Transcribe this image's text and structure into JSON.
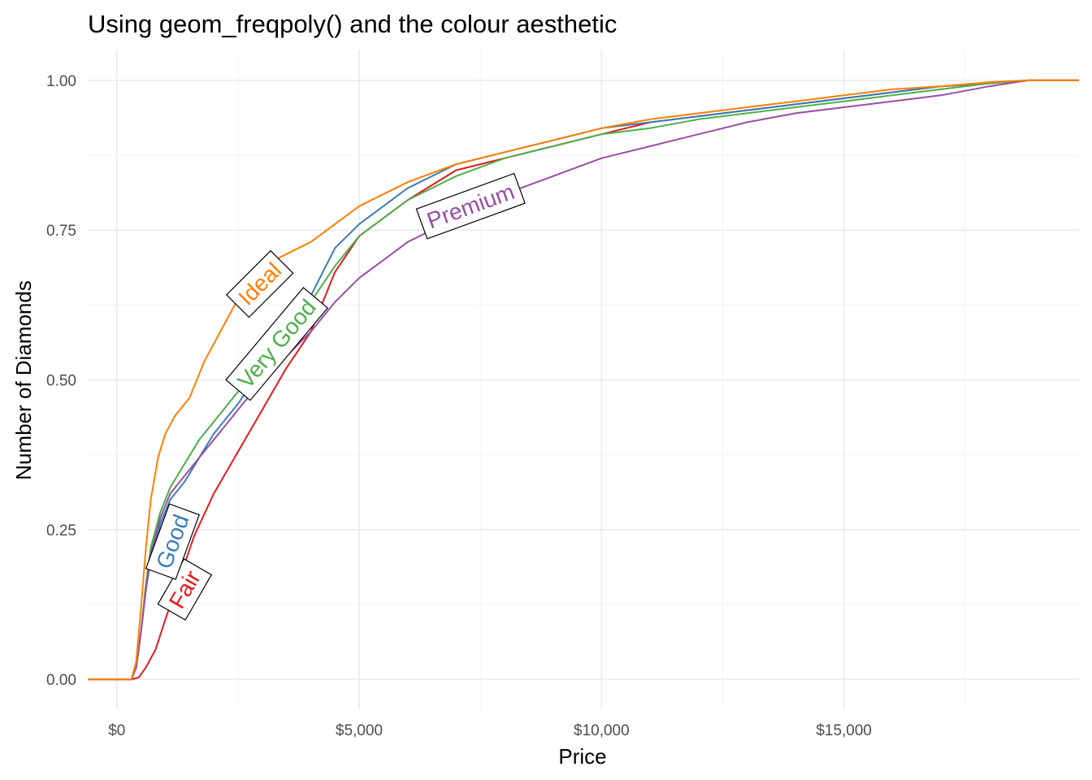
{
  "chart_data": {
    "type": "line",
    "title": "Using geom_freqpoly() and the colour aesthetic",
    "xlabel": "Price",
    "ylabel": "Number of Diamonds",
    "xlim": [
      -600,
      19850
    ],
    "ylim": [
      -0.05,
      1.05
    ],
    "x_ticks": [
      0,
      5000,
      10000,
      15000
    ],
    "x_tick_labels": [
      "$0",
      "$5,000",
      "$10,000",
      "$15,000"
    ],
    "y_ticks": [
      0,
      0.25,
      0.5,
      0.75,
      1.0
    ],
    "y_tick_labels": [
      "0.00",
      "0.25",
      "0.50",
      "0.75",
      "1.00"
    ],
    "grid": true,
    "legend": "none (direct labels)",
    "series": [
      {
        "name": "Fair",
        "color": "#E41A1C",
        "x": [
          -600,
          300,
          450,
          600,
          800,
          1000,
          1300,
          1600,
          2000,
          2500,
          3000,
          3500,
          4000,
          4500,
          5000,
          6000,
          7000,
          8000,
          9000,
          10000,
          11000,
          12000,
          13000,
          14000,
          15000,
          16000,
          17000,
          18000,
          18800,
          19850
        ],
        "y": [
          0,
          0,
          0.003,
          0.02,
          0.05,
          0.1,
          0.17,
          0.24,
          0.31,
          0.38,
          0.45,
          0.52,
          0.58,
          0.68,
          0.74,
          0.8,
          0.85,
          0.87,
          0.89,
          0.91,
          0.93,
          0.94,
          0.95,
          0.96,
          0.97,
          0.98,
          0.99,
          0.995,
          1.0,
          1.0
        ],
        "label": {
          "text": "Fair",
          "x": 1400,
          "y": 0.15,
          "angle": -60
        }
      },
      {
        "name": "Good",
        "color": "#377EB8",
        "x": [
          -600,
          300,
          400,
          500,
          600,
          700,
          900,
          1100,
          1400,
          1700,
          2000,
          2500,
          3000,
          3500,
          4000,
          4500,
          5000,
          6000,
          7000,
          8000,
          9000,
          10000,
          11000,
          12000,
          13000,
          14000,
          15000,
          16000,
          17000,
          18000,
          18800,
          19850
        ],
        "y": [
          0,
          0,
          0.02,
          0.08,
          0.15,
          0.2,
          0.26,
          0.3,
          0.33,
          0.37,
          0.41,
          0.46,
          0.52,
          0.58,
          0.64,
          0.72,
          0.76,
          0.82,
          0.86,
          0.88,
          0.9,
          0.92,
          0.93,
          0.94,
          0.95,
          0.96,
          0.97,
          0.98,
          0.99,
          0.995,
          1.0,
          1.0
        ],
        "label": {
          "text": "Good",
          "x": 1150,
          "y": 0.23,
          "angle": -70
        }
      },
      {
        "name": "Very Good",
        "color": "#4DAF4A",
        "x": [
          -600,
          300,
          400,
          500,
          600,
          700,
          900,
          1100,
          1400,
          1700,
          2000,
          2500,
          3000,
          3500,
          4000,
          4500,
          5000,
          6000,
          7000,
          8000,
          9000,
          10000,
          11000,
          12000,
          13000,
          14000,
          15000,
          16000,
          17000,
          18000,
          18800,
          19850
        ],
        "y": [
          0,
          0,
          0.02,
          0.08,
          0.16,
          0.22,
          0.28,
          0.32,
          0.36,
          0.4,
          0.43,
          0.48,
          0.53,
          0.58,
          0.63,
          0.69,
          0.74,
          0.8,
          0.84,
          0.87,
          0.89,
          0.91,
          0.92,
          0.935,
          0.945,
          0.955,
          0.965,
          0.975,
          0.985,
          0.995,
          1.0,
          1.0
        ],
        "label": {
          "text": "Very Good",
          "x": 3300,
          "y": 0.56,
          "angle": -50
        }
      },
      {
        "name": "Premium",
        "color": "#984EA3",
        "x": [
          -600,
          300,
          400,
          500,
          600,
          700,
          900,
          1100,
          1400,
          1700,
          2000,
          2500,
          3000,
          3500,
          4000,
          4500,
          5000,
          6000,
          7000,
          8000,
          9000,
          10000,
          11000,
          12000,
          13000,
          14000,
          15000,
          16000,
          17000,
          18000,
          18800,
          19850
        ],
        "y": [
          0,
          0,
          0.02,
          0.08,
          0.15,
          0.21,
          0.27,
          0.31,
          0.34,
          0.37,
          0.4,
          0.45,
          0.5,
          0.54,
          0.58,
          0.63,
          0.67,
          0.73,
          0.77,
          0.81,
          0.84,
          0.87,
          0.89,
          0.91,
          0.93,
          0.945,
          0.955,
          0.965,
          0.975,
          0.99,
          1.0,
          1.0
        ],
        "label": {
          "text": "Premium",
          "x": 7300,
          "y": 0.79,
          "angle": -20
        }
      },
      {
        "name": "Ideal",
        "color": "#FF7F00",
        "x": [
          -600,
          300,
          400,
          500,
          600,
          700,
          850,
          1000,
          1200,
          1500,
          1800,
          2200,
          2600,
          3000,
          3500,
          4000,
          4500,
          5000,
          6000,
          7000,
          8000,
          9000,
          10000,
          11000,
          12000,
          13000,
          14000,
          15000,
          16000,
          17000,
          18000,
          18800,
          19850
        ],
        "y": [
          0,
          0,
          0.03,
          0.12,
          0.22,
          0.3,
          0.37,
          0.41,
          0.44,
          0.47,
          0.53,
          0.59,
          0.65,
          0.69,
          0.71,
          0.73,
          0.76,
          0.79,
          0.83,
          0.86,
          0.88,
          0.9,
          0.92,
          0.935,
          0.945,
          0.955,
          0.965,
          0.975,
          0.985,
          0.99,
          0.997,
          1.0,
          1.0
        ],
        "label": {
          "text": "Ideal",
          "x": 2950,
          "y": 0.66,
          "angle": -45
        }
      }
    ]
  }
}
